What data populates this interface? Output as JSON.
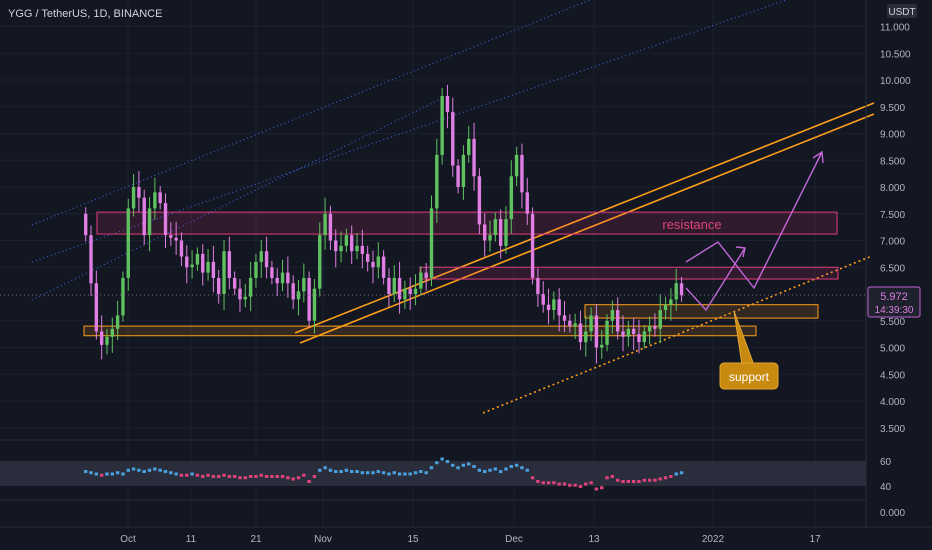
{
  "header": {
    "title": "YGG / TetherUS, 1D, BINANCE"
  },
  "currency": "USDT",
  "last_price": {
    "value": "5.972",
    "countdown": "14:39:30"
  },
  "annotations": {
    "resistance": "resistance",
    "support": "support"
  },
  "colors": {
    "background": "#131722",
    "up": "#5fc15f",
    "down": "#e07ee3",
    "resistance_zone": "#e03a7a",
    "support_zone": "#ff9f1a",
    "channel": "#3b6df0",
    "arrow": "#c266d8",
    "support_label_bg": "#c88a0f"
  },
  "chart_data": {
    "type": "candlestick",
    "title": "YGG / TetherUS, 1D, BINANCE",
    "y_axis": {
      "ticks": [
        "11.000",
        "10.500",
        "10.000",
        "9.500",
        "9.000",
        "8.500",
        "8.000",
        "7.500",
        "7.000",
        "6.500",
        "5.500",
        "5.000",
        "4.500",
        "4.000",
        "3.500"
      ],
      "range": [
        3.3,
        11.4
      ]
    },
    "x_axis": {
      "ticks": [
        "Oct",
        "11",
        "21",
        "Nov",
        "15",
        "Dec",
        "13",
        "2022",
        "17"
      ]
    },
    "closes": [
      7.1,
      6.2,
      5.3,
      5.05,
      5.2,
      5.35,
      5.6,
      6.3,
      7.6,
      8.0,
      7.8,
      7.1,
      7.6,
      7.9,
      7.7,
      7.1,
      7.05,
      7.0,
      6.7,
      6.5,
      6.55,
      6.75,
      6.4,
      6.6,
      6.3,
      6.0,
      6.8,
      6.3,
      6.1,
      5.9,
      5.95,
      6.3,
      6.6,
      6.8,
      6.5,
      6.3,
      6.2,
      6.4,
      6.2,
      5.9,
      6.05,
      6.3,
      5.5,
      6.1,
      7.1,
      7.5,
      7.0,
      6.8,
      6.9,
      7.1,
      6.8,
      6.9,
      6.75,
      6.6,
      6.5,
      6.7,
      6.3,
      6.0,
      6.3,
      5.9,
      6.1,
      6.0,
      6.1,
      6.4,
      6.3,
      7.6,
      8.6,
      9.7,
      9.4,
      8.4,
      8.0,
      8.6,
      8.9,
      8.2,
      7.3,
      7.0,
      7.1,
      7.4,
      6.9,
      7.4,
      8.2,
      8.6,
      7.9,
      7.5,
      6.3,
      6.0,
      5.8,
      5.7,
      5.9,
      5.6,
      5.5,
      5.4,
      5.45,
      5.1,
      5.3,
      5.6,
      5.0,
      5.05,
      5.5,
      5.7,
      5.3,
      5.2,
      5.35,
      5.25,
      5.1,
      5.3,
      5.4,
      5.35,
      5.7,
      5.8,
      5.9,
      6.2,
      5.972
    ],
    "indicator": {
      "name": "",
      "ticks": [
        "60",
        "40",
        "0.000"
      ],
      "band": [
        40,
        60
      ],
      "values": [
        52,
        51,
        50,
        49,
        50,
        50,
        51,
        50,
        53,
        54,
        53,
        52,
        53,
        54,
        53,
        52,
        51,
        50,
        49,
        49,
        50,
        49,
        48,
        49,
        48,
        48,
        49,
        48,
        48,
        47,
        47,
        48,
        48,
        49,
        48,
        48,
        48,
        48,
        47,
        46,
        47,
        49,
        44,
        48,
        53,
        55,
        53,
        52,
        52,
        53,
        52,
        52,
        51,
        51,
        51,
        52,
        51,
        50,
        51,
        50,
        50,
        50,
        51,
        52,
        51,
        55,
        59,
        62,
        60,
        57,
        55,
        57,
        58,
        56,
        53,
        52,
        53,
        54,
        52,
        54,
        56,
        57,
        55,
        53,
        47,
        44,
        43,
        43,
        43,
        42,
        42,
        41,
        41,
        40,
        42,
        43,
        38,
        39,
        47,
        48,
        45,
        44,
        44,
        44,
        44,
        45,
        45,
        45,
        46,
        47,
        48,
        50,
        51
      ]
    },
    "zones": [
      {
        "name": "resistance zone upper",
        "price_range": [
          7.12,
          7.53
        ]
      },
      {
        "name": "resistance zone lower",
        "price_range": [
          6.28,
          6.5
        ]
      },
      {
        "name": "support zone right",
        "price_range": [
          5.55,
          5.8
        ]
      },
      {
        "name": "support zone left",
        "price_range": [
          5.22,
          5.4
        ]
      }
    ]
  }
}
